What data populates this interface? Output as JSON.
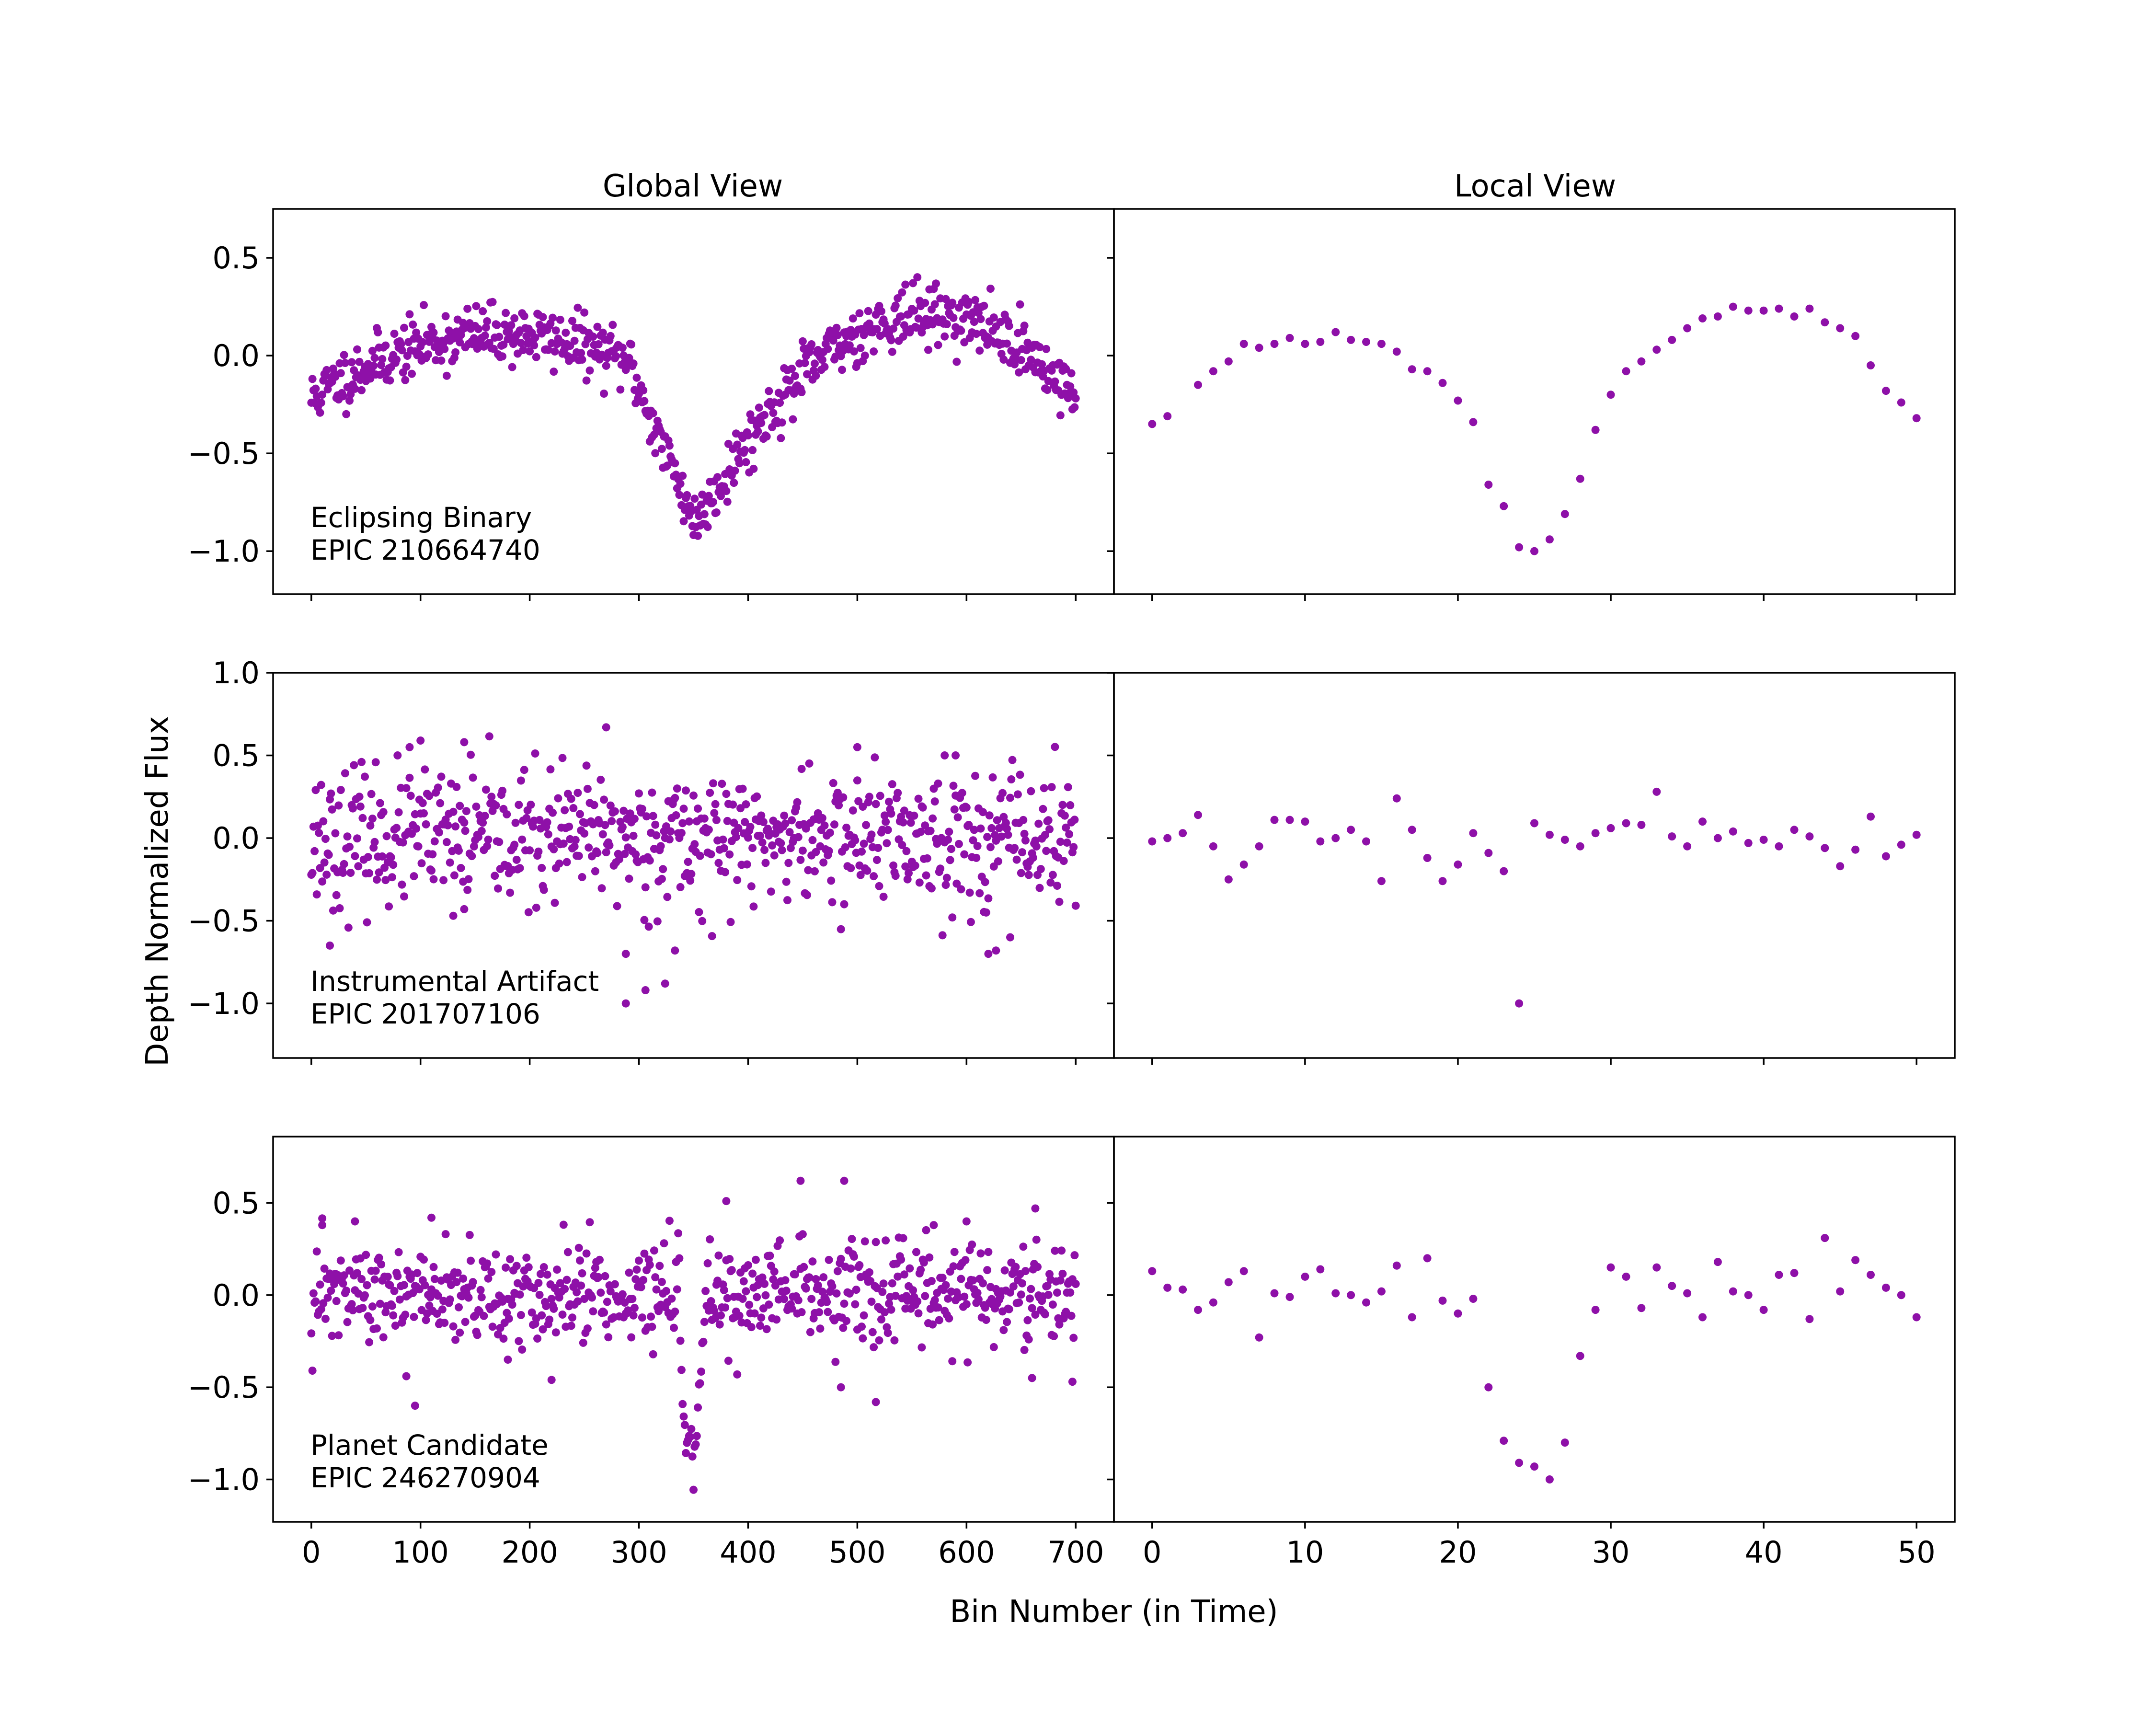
{
  "figure": {
    "column_titles": [
      "Global View",
      "Local View"
    ],
    "xlabel": "Bin Number (in Time)",
    "ylabel": "Depth Normalized Flux",
    "marker_color": "#8e10a8"
  },
  "axes": {
    "global_x_ticks": [
      0,
      100,
      200,
      300,
      400,
      500,
      600,
      700
    ],
    "global_xlim": [
      -35,
      735
    ],
    "local_x_ticks": [
      0,
      10,
      20,
      30,
      40,
      50
    ],
    "local_xlim": [
      -2.5,
      52.5
    ]
  },
  "chart_data": [
    {
      "type": "scatter",
      "row": 0,
      "annotation": [
        "Eclipsing Binary",
        "EPIC 210664740"
      ],
      "ylim": [
        -1.22,
        0.75
      ],
      "yticks": [
        0.5,
        0.0,
        -0.5,
        -1.0
      ],
      "ytick_labels": [
        "0.5",
        "0.0",
        "−0.5",
        "−1.0"
      ],
      "global": {
        "x_range": [
          0,
          700
        ],
        "n_points": 701,
        "shape": "binary",
        "noise": 0.075,
        "seed": 11,
        "eclipse_center": 350,
        "eclipse_halfwidth": 60,
        "eclipse_depth": -0.82
      },
      "local": {
        "x": [
          0,
          1,
          3,
          4,
          5,
          6,
          7,
          8,
          9,
          10,
          11,
          12,
          13,
          14,
          15,
          16,
          17,
          18,
          19,
          20,
          21,
          22,
          23,
          24,
          25,
          26,
          27,
          28,
          29,
          30,
          31,
          32,
          33,
          34,
          35,
          36,
          37,
          38,
          39,
          40,
          41,
          42,
          43,
          44,
          45,
          46,
          47,
          48,
          49,
          50
        ],
        "y": [
          -0.35,
          -0.31,
          -0.15,
          -0.08,
          -0.03,
          0.06,
          0.04,
          0.06,
          0.09,
          0.06,
          0.07,
          0.12,
          0.08,
          0.07,
          0.06,
          0.02,
          -0.07,
          -0.08,
          -0.14,
          -0.23,
          -0.34,
          -0.66,
          -0.77,
          -0.98,
          -1.0,
          -0.94,
          -0.81,
          -0.63,
          -0.38,
          -0.2,
          -0.08,
          -0.03,
          0.03,
          0.08,
          0.14,
          0.19,
          0.2,
          0.25,
          0.23,
          0.23,
          0.24,
          0.2,
          0.24,
          0.17,
          0.14,
          0.1,
          -0.05,
          -0.18,
          -0.24,
          -0.32
        ]
      }
    },
    {
      "type": "scatter",
      "row": 1,
      "annotation": [
        "Instrumental Artifact",
        "EPIC 201707106"
      ],
      "ylim": [
        -1.33,
        1.0
      ],
      "yticks": [
        1.0,
        0.5,
        0.0,
        -0.5,
        -1.0
      ],
      "ytick_labels": [
        "1.0",
        "0.5",
        "0.0",
        "−0.5",
        "−1.0"
      ],
      "global": {
        "x_range": [
          0,
          700
        ],
        "n_points": 701,
        "shape": "flat",
        "noise": 0.2,
        "seed": 23,
        "outliers": [
          [
            17,
            -0.65
          ],
          [
            288,
            -0.7
          ],
          [
            306,
            -0.92
          ],
          [
            324,
            -0.88
          ],
          [
            333,
            -0.68
          ],
          [
            288,
            -1.0
          ],
          [
            620,
            -0.7
          ],
          [
            627,
            -0.68
          ],
          [
            130,
            -0.47
          ],
          [
            140,
            -0.43
          ],
          [
            100,
            0.59
          ],
          [
            140,
            0.58
          ],
          [
            270,
            0.67
          ],
          [
            500,
            0.55
          ],
          [
            580,
            0.5
          ],
          [
            590,
            0.5
          ],
          [
            90,
            0.55
          ],
          [
            640,
            -0.6
          ]
        ]
      },
      "local": {
        "x": [
          0,
          1,
          2,
          3,
          4,
          5,
          6,
          7,
          8,
          9,
          10,
          11,
          12,
          13,
          14,
          15,
          16,
          17,
          18,
          19,
          20,
          21,
          22,
          23,
          24,
          25,
          26,
          27,
          28,
          29,
          30,
          31,
          32,
          33,
          34,
          35,
          36,
          37,
          38,
          39,
          40,
          41,
          42,
          43,
          44,
          45,
          46,
          47,
          48,
          49,
          50
        ],
        "y": [
          -0.02,
          0.0,
          0.03,
          0.14,
          -0.05,
          -0.25,
          -0.16,
          -0.05,
          0.11,
          0.11,
          0.1,
          -0.02,
          0.0,
          0.05,
          -0.02,
          -0.26,
          0.24,
          0.05,
          -0.12,
          -0.26,
          -0.16,
          0.03,
          -0.09,
          -0.2,
          -1.0,
          0.09,
          0.02,
          -0.01,
          -0.05,
          0.03,
          0.06,
          0.09,
          0.08,
          0.28,
          0.01,
          -0.05,
          0.1,
          0.0,
          0.04,
          -0.03,
          -0.01,
          -0.05,
          0.05,
          0.01,
          -0.06,
          -0.17,
          -0.07,
          0.13,
          -0.11,
          -0.04,
          0.02
        ]
      }
    },
    {
      "type": "scatter",
      "row": 2,
      "annotation": [
        "Planet Candidate",
        "EPIC 246270904"
      ],
      "ylim": [
        -1.23,
        0.86
      ],
      "yticks": [
        0.5,
        0.0,
        -0.5,
        -1.0
      ],
      "ytick_labels": [
        "0.5",
        "0.0",
        "−0.5",
        "−1.0"
      ],
      "global": {
        "x_range": [
          0,
          700
        ],
        "n_points": 701,
        "shape": "transit",
        "noise": 0.13,
        "seed": 47,
        "transit_center": 349,
        "transit_halfwidth": 12,
        "transit_depth": -0.85,
        "outliers": [
          [
            448,
            0.62
          ],
          [
            488,
            0.62
          ],
          [
            380,
            0.51
          ],
          [
            95,
            -0.6
          ],
          [
            87,
            -0.44
          ],
          [
            485,
            -0.5
          ],
          [
            517,
            -0.58
          ],
          [
            663,
            0.47
          ],
          [
            660,
            -0.45
          ],
          [
            697,
            -0.47
          ],
          [
            600,
            0.4
          ],
          [
            570,
            0.38
          ],
          [
            10,
            0.38
          ],
          [
            40,
            0.4
          ],
          [
            110,
            0.42
          ],
          [
            220,
            -0.46
          ],
          [
            180,
            -0.35
          ]
        ]
      },
      "local": {
        "x": [
          0,
          1,
          2,
          3,
          4,
          5,
          6,
          7,
          8,
          9,
          10,
          11,
          12,
          13,
          14,
          15,
          16,
          17,
          18,
          19,
          20,
          21,
          22,
          23,
          24,
          25,
          26,
          27,
          28,
          29,
          30,
          31,
          32,
          33,
          34,
          35,
          36,
          37,
          38,
          39,
          40,
          41,
          42,
          43,
          44,
          45,
          46,
          47,
          48,
          49,
          50
        ],
        "y": [
          0.13,
          0.04,
          0.03,
          -0.08,
          -0.04,
          0.07,
          0.13,
          -0.23,
          0.01,
          -0.01,
          0.1,
          0.14,
          0.01,
          0.0,
          -0.04,
          0.02,
          0.16,
          -0.12,
          0.2,
          -0.03,
          -0.1,
          -0.02,
          -0.5,
          -0.79,
          -0.91,
          -0.93,
          -1.0,
          -0.8,
          -0.33,
          -0.08,
          0.15,
          0.1,
          -0.07,
          0.15,
          0.05,
          0.01,
          -0.12,
          0.18,
          0.02,
          0.0,
          -0.08,
          0.11,
          0.12,
          -0.13,
          0.31,
          0.02,
          0.19,
          0.11,
          0.04,
          0.0,
          -0.12
        ]
      }
    }
  ]
}
